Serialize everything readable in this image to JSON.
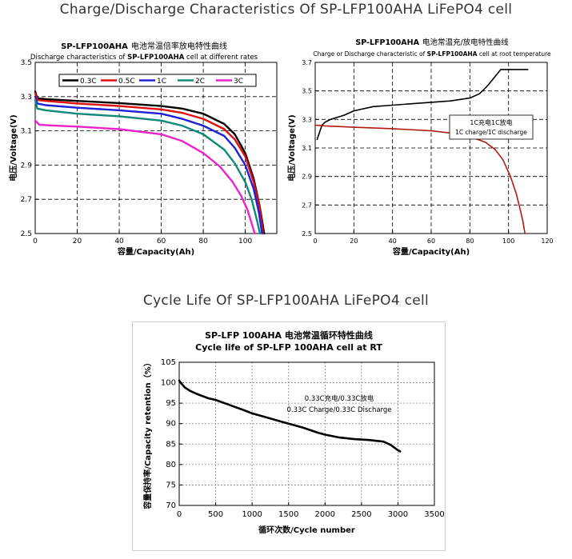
{
  "headings": {
    "charge_discharge": "Charge/Discharge Characteristics Of SP-LFP100AHA LiFePO4 cell",
    "cycle_life": "Cycle Life Of SP-LFP100AHA LiFePO4 cell"
  },
  "chart_data": [
    {
      "type": "line",
      "title_line1_en": "SP-LFP100AHA",
      "title_line1_cn": "电池常温倍率放电特性曲线",
      "title_line2_prefix": "Discharge characteristics of ",
      "title_line2_bold": "SP-LFP100AHA",
      "title_line2_suffix": " cell at different rates",
      "xlabel": "容量/Capacity(Ah)",
      "ylabel": "电压/Voltage(V)",
      "xlim": [
        0,
        115
      ],
      "ylim": [
        2.5,
        3.5
      ],
      "xticks": [
        0,
        20,
        40,
        60,
        80,
        100
      ],
      "yticks": [
        2.5,
        2.7,
        2.9,
        3.1,
        3.3,
        3.5
      ],
      "grid": true,
      "legend": "top-left",
      "series": [
        {
          "name": "0.3C",
          "color": "#000000",
          "points": [
            [
              0,
              3.33
            ],
            [
              1,
              3.29
            ],
            [
              5,
              3.285
            ],
            [
              20,
              3.275
            ],
            [
              40,
              3.262
            ],
            [
              60,
              3.245
            ],
            [
              70,
              3.23
            ],
            [
              80,
              3.2
            ],
            [
              90,
              3.14
            ],
            [
              95,
              3.08
            ],
            [
              100,
              2.97
            ],
            [
              104,
              2.82
            ],
            [
              107,
              2.65
            ],
            [
              109,
              2.5
            ]
          ]
        },
        {
          "name": "0.5C",
          "color": "#e01010",
          "points": [
            [
              0,
              3.32
            ],
            [
              1,
              3.28
            ],
            [
              5,
              3.275
            ],
            [
              20,
              3.26
            ],
            [
              40,
              3.245
            ],
            [
              60,
              3.225
            ],
            [
              70,
              3.205
            ],
            [
              80,
              3.17
            ],
            [
              90,
              3.11
            ],
            [
              95,
              3.05
            ],
            [
              100,
              2.95
            ],
            [
              104,
              2.8
            ],
            [
              107,
              2.64
            ],
            [
              108.5,
              2.5
            ]
          ]
        },
        {
          "name": "1C",
          "color": "#2020d8",
          "points": [
            [
              0,
              3.3
            ],
            [
              1,
              3.26
            ],
            [
              5,
              3.25
            ],
            [
              20,
              3.235
            ],
            [
              40,
              3.22
            ],
            [
              60,
              3.2
            ],
            [
              70,
              3.17
            ],
            [
              80,
              3.13
            ],
            [
              90,
              3.07
            ],
            [
              95,
              3.0
            ],
            [
              100,
              2.9
            ],
            [
              104,
              2.76
            ],
            [
              106.5,
              2.62
            ],
            [
              108,
              2.5
            ]
          ]
        },
        {
          "name": "2C",
          "color": "#0f8a7a",
          "points": [
            [
              0,
              3.28
            ],
            [
              1,
              3.23
            ],
            [
              5,
              3.22
            ],
            [
              20,
              3.2
            ],
            [
              40,
              3.185
            ],
            [
              60,
              3.16
            ],
            [
              70,
              3.13
            ],
            [
              80,
              3.08
            ],
            [
              90,
              2.99
            ],
            [
              95,
              2.91
            ],
            [
              100,
              2.8
            ],
            [
              103,
              2.7
            ],
            [
              105.5,
              2.58
            ],
            [
              107,
              2.5
            ]
          ]
        },
        {
          "name": "3C",
          "color": "#ee22cc",
          "points": [
            [
              0,
              3.16
            ],
            [
              2,
              3.135
            ],
            [
              10,
              3.13
            ],
            [
              20,
              3.125
            ],
            [
              40,
              3.11
            ],
            [
              60,
              3.08
            ],
            [
              70,
              3.04
            ],
            [
              80,
              2.97
            ],
            [
              88,
              2.89
            ],
            [
              94,
              2.8
            ],
            [
              98,
              2.72
            ],
            [
              101,
              2.64
            ],
            [
              103,
              2.56
            ],
            [
              104.5,
              2.5
            ]
          ]
        }
      ]
    },
    {
      "type": "line",
      "title_line1_en": "SP-LFP100AHA",
      "title_line1_cn": "电池常温充/放电特性曲线",
      "title_line2_prefix": "Charge or Discharge characteristic of ",
      "title_line2_bold": "SP-LFP100AHA",
      "title_line2_suffix": " cell at root temperature",
      "xlabel": "容量/Capacity(Ah)",
      "ylabel": "电压/Voltage(V)",
      "xlim": [
        0,
        120
      ],
      "ylim": [
        2.5,
        3.7
      ],
      "xticks": [
        0,
        20,
        40,
        60,
        80,
        100,
        120
      ],
      "yticks": [
        2.5,
        2.7,
        2.9,
        3.1,
        3.3,
        3.5,
        3.7
      ],
      "grid": true,
      "annotation_line1": "1C充电1C放电",
      "annotation_line2": "1C charge/1C discharge",
      "series": [
        {
          "name": "charge",
          "color": "#000000",
          "points": [
            [
              1,
              3.16
            ],
            [
              2,
              3.2
            ],
            [
              3.5,
              3.26
            ],
            [
              5,
              3.28
            ],
            [
              8,
              3.3
            ],
            [
              15,
              3.33
            ],
            [
              20,
              3.36
            ],
            [
              30,
              3.39
            ],
            [
              40,
              3.4
            ],
            [
              50,
              3.41
            ],
            [
              60,
              3.42
            ],
            [
              70,
              3.43
            ],
            [
              80,
              3.45
            ],
            [
              85,
              3.48
            ],
            [
              88,
              3.52
            ],
            [
              90,
              3.55
            ],
            [
              93,
              3.6
            ],
            [
              96,
              3.65
            ],
            [
              110,
              3.65
            ]
          ]
        },
        {
          "name": "discharge",
          "color": "#b01a10",
          "points": [
            [
              0,
              3.26
            ],
            [
              5,
              3.255
            ],
            [
              20,
              3.245
            ],
            [
              40,
              3.235
            ],
            [
              60,
              3.22
            ],
            [
              70,
              3.205
            ],
            [
              80,
              3.18
            ],
            [
              88,
              3.14
            ],
            [
              93,
              3.09
            ],
            [
              97,
              3.02
            ],
            [
              101,
              2.9
            ],
            [
              104,
              2.78
            ],
            [
              106,
              2.67
            ],
            [
              107.5,
              2.58
            ],
            [
              108.5,
              2.5
            ]
          ]
        }
      ]
    },
    {
      "type": "line",
      "title_line1": "SP-LFP 100AHA   电池常温循环特性曲线",
      "title_line2": "Cycle life of SP-LFP 100AHA cell at RT",
      "xlabel": "循环次数/Cycle number",
      "ylabel": "容量保持率/Capacity retention（%）",
      "xlim": [
        0,
        3500
      ],
      "ylim": [
        70,
        105
      ],
      "xticks": [
        0,
        500,
        1000,
        1500,
        2000,
        2500,
        3000,
        3500
      ],
      "yticks": [
        70,
        75,
        80,
        85,
        90,
        95,
        100,
        105
      ],
      "grid": true,
      "annotation_line1": "0.33C充电/0.33C放电",
      "annotation_line2": "0.33C Charge/0.33C Discharge",
      "series": [
        {
          "name": "cycle",
          "color": "#000000",
          "points": [
            [
              0,
              100.5
            ],
            [
              30,
              99.8
            ],
            [
              80,
              98.8
            ],
            [
              150,
              98.0
            ],
            [
              250,
              97.2
            ],
            [
              400,
              96.2
            ],
            [
              500,
              95.8
            ],
            [
              700,
              94.5
            ],
            [
              900,
              93.2
            ],
            [
              1000,
              92.5
            ],
            [
              1200,
              91.5
            ],
            [
              1400,
              90.5
            ],
            [
              1500,
              90.0
            ],
            [
              1700,
              89.0
            ],
            [
              1900,
              87.8
            ],
            [
              2000,
              87.3
            ],
            [
              2200,
              86.6
            ],
            [
              2400,
              86.2
            ],
            [
              2600,
              86.0
            ],
            [
              2800,
              85.6
            ],
            [
              2900,
              84.8
            ],
            [
              3000,
              83.5
            ],
            [
              3030,
              83.2
            ]
          ]
        }
      ]
    }
  ]
}
